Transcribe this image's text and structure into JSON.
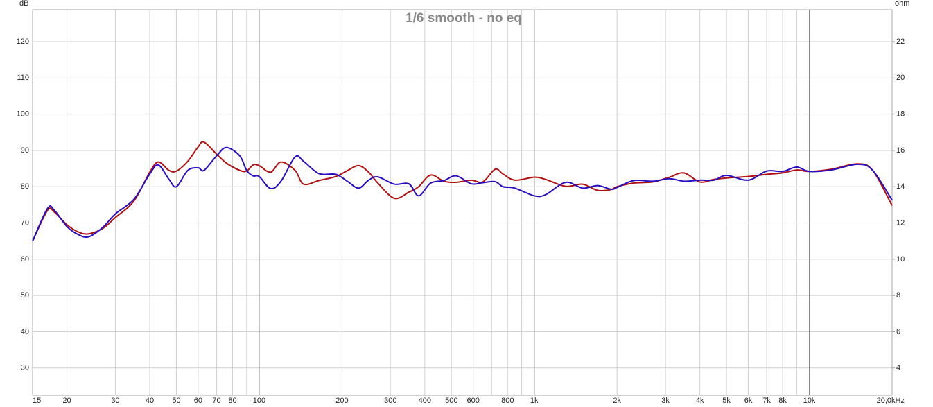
{
  "chart_data": {
    "type": "line",
    "title": "1/6 smooth - no eq",
    "ylabel": "dB",
    "y2label": "ohm",
    "xscale": "log",
    "grid": true,
    "xlim": [
      15,
      20000
    ],
    "xticks": [
      15,
      20,
      30,
      40,
      50,
      60,
      70,
      80,
      100,
      200,
      300,
      400,
      500,
      600,
      800,
      {
        "value": 1000,
        "label": "1k"
      },
      {
        "value": 2000,
        "label": "2k"
      },
      {
        "value": 3000,
        "label": "3k"
      },
      {
        "value": 4000,
        "label": "4k"
      },
      {
        "value": 5000,
        "label": "5k"
      },
      {
        "value": 6000,
        "label": "6k"
      },
      {
        "value": 7000,
        "label": "7k"
      },
      {
        "value": 8000,
        "label": "8k"
      },
      {
        "value": 10000,
        "label": "10k"
      },
      {
        "value": 20000,
        "label": "20,0kHz"
      }
    ],
    "xminor_ticks": [
      90,
      700,
      900,
      9000
    ],
    "xmajor_ticks": [
      100,
      1000,
      10000
    ],
    "ylim": [
      22.5,
      128.8
    ],
    "yticks": [
      30,
      40,
      50,
      60,
      70,
      80,
      90,
      100,
      110,
      120
    ],
    "y2lim": [
      2.5,
      23.76
    ],
    "y2ticks": [
      4,
      6,
      8,
      10,
      12,
      14,
      16,
      18,
      20,
      22
    ],
    "x": [
      15,
      17,
      18,
      20,
      22,
      24,
      27,
      30,
      35,
      40,
      43,
      47,
      50,
      55,
      60,
      63,
      70,
      76,
      85,
      90,
      95,
      100,
      110,
      120,
      135,
      145,
      165,
      190,
      210,
      230,
      250,
      270,
      310,
      350,
      380,
      420,
      470,
      520,
      590,
      650,
      720,
      770,
      850,
      1000,
      1100,
      1300,
      1500,
      1700,
      1900,
      2000,
      2300,
      2700,
      3100,
      3500,
      4000,
      4500,
      5000,
      6000,
      7000,
      8000,
      9000,
      10000,
      12000,
      15000,
      17000,
      20000
    ],
    "series": [
      {
        "name": "red",
        "color": "#b01010",
        "values": [
          65,
          73.5,
          73,
          69.5,
          67.5,
          67,
          68.5,
          71.5,
          76,
          84,
          86.8,
          84.5,
          84.3,
          87,
          91,
          92.3,
          89,
          86.5,
          84.5,
          84.3,
          86,
          85.8,
          84,
          86.8,
          84.5,
          80.7,
          81.7,
          82.8,
          84.5,
          85.8,
          84,
          81,
          76.8,
          78.5,
          80,
          83.2,
          81.5,
          81.2,
          81.8,
          81.3,
          84.8,
          83.5,
          81.8,
          82.6,
          82,
          80.1,
          80.7,
          79,
          79.2,
          80,
          81,
          81.3,
          82.6,
          83.8,
          81.3,
          82,
          82.4,
          82.8,
          83.4,
          83.8,
          84.6,
          84.2,
          84.8,
          86.3,
          84.5,
          74.8
        ]
      },
      {
        "name": "blue",
        "color": "#2a0cc0",
        "values": [
          65,
          74,
          73.5,
          69,
          66.8,
          66.2,
          68.8,
          72.5,
          76.5,
          83.5,
          86,
          82,
          80,
          84.5,
          85.2,
          84.5,
          88.5,
          90.8,
          88.5,
          84.5,
          83,
          82.8,
          79.5,
          81.5,
          88.2,
          87,
          83.6,
          83.4,
          81.4,
          79.6,
          81.8,
          82.7,
          80.7,
          80.8,
          77.5,
          81,
          81.7,
          83,
          80.8,
          81.1,
          81.4,
          80,
          79.6,
          77.5,
          77.8,
          81.2,
          79.6,
          80.3,
          79.3,
          79.8,
          81.7,
          81.5,
          82.2,
          81.5,
          81.8,
          81.8,
          83.1,
          81.8,
          84.3,
          84.2,
          85.4,
          84.2,
          84.6,
          86.2,
          84.5,
          76.3
        ]
      }
    ]
  }
}
